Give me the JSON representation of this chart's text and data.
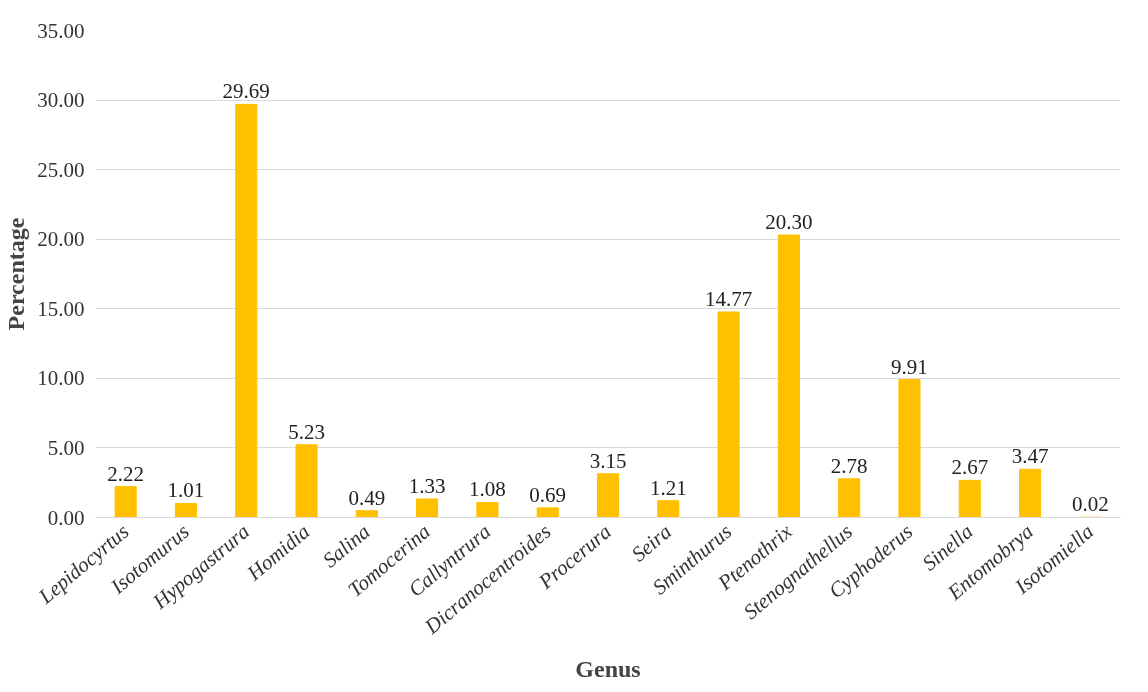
{
  "chart_data": {
    "type": "bar",
    "xlabel": "Genus",
    "ylabel": "Percentage",
    "categories": [
      "Lepidocyrtus",
      "Isotomurus",
      "Hypogastrura",
      "Homidia",
      "Salina",
      "Tomocerina",
      "Callyntrura",
      "Dicranocentroides",
      "Procerura",
      "Seira",
      "Sminthurus",
      "Ptenothrix",
      "Stenognathellus",
      "Cyphoderus",
      "Sinella",
      "Entomobrya",
      "Isotomiella"
    ],
    "values": [
      2.22,
      1.01,
      29.69,
      5.23,
      0.49,
      1.33,
      1.08,
      0.69,
      3.15,
      1.21,
      14.77,
      20.3,
      2.78,
      9.91,
      2.67,
      3.47,
      0.02
    ],
    "value_labels": [
      "2.22",
      "1.01",
      "29.69",
      "5.23",
      "0.49",
      "1.33",
      "1.08",
      "0.69",
      "3.15",
      "1.21",
      "14.77",
      "20.30",
      "2.78",
      "9.91",
      "2.67",
      "3.47",
      "0.02"
    ],
    "color": "#ffc000",
    "ylim": [
      0,
      35
    ],
    "yticks": [
      {
        "value": 0,
        "label": "0.00"
      },
      {
        "value": 5,
        "label": "5.00"
      },
      {
        "value": 10,
        "label": "10.00"
      },
      {
        "value": 15,
        "label": "15.00"
      },
      {
        "value": 20,
        "label": "20.00"
      },
      {
        "value": 25,
        "label": "25.00"
      },
      {
        "value": 30,
        "label": "30.00"
      },
      {
        "value": 35,
        "label": "35.00"
      }
    ],
    "grid": "y"
  }
}
